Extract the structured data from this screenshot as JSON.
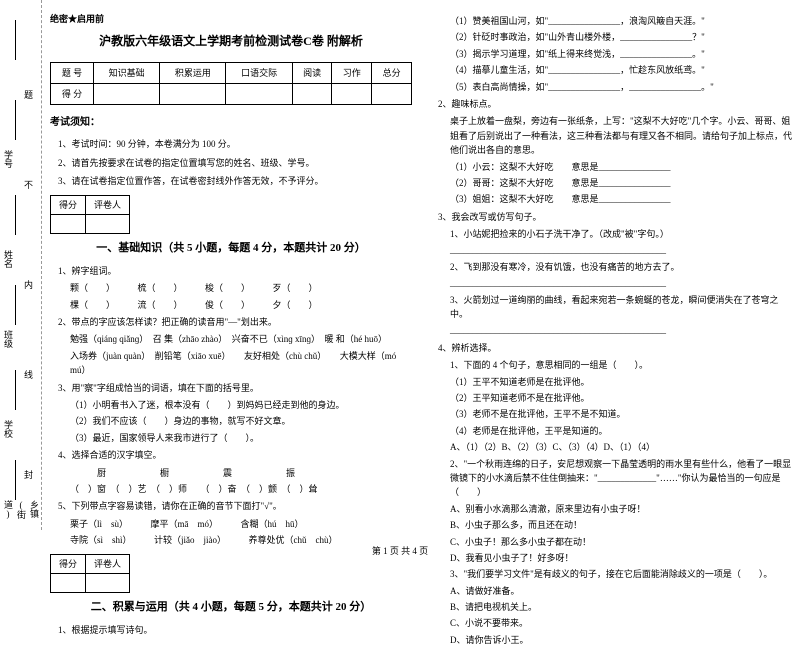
{
  "binding": {
    "labels": [
      "乡镇(街道)",
      "学校",
      "班级",
      "姓名",
      "学号"
    ],
    "marks": [
      "封",
      "线",
      "内",
      "不",
      "题"
    ]
  },
  "secret": "绝密★启用前",
  "title": "沪教版六年级语文上学期考前检测试卷C卷 附解析",
  "scoreTable": {
    "headers": [
      "题 号",
      "知识基础",
      "积累运用",
      "口语交际",
      "阅读",
      "习作",
      "总分"
    ],
    "row2": "得 分"
  },
  "notice": {
    "head": "考试须知：",
    "items": [
      "1、考试时间：90 分钟，本卷满分为 100 分。",
      "2、请首先按要求在试卷的指定位置填写您的姓名、班级、学号。",
      "3、请在试卷指定位置作答，在试卷密封线外作答无效，不予评分。"
    ]
  },
  "marker": {
    "c1": "得分",
    "c2": "评卷人"
  },
  "section1": {
    "head": "一、基础知识（共 5 小题，每题 4 分，本题共计 20 分）",
    "q1": "1、辨字组词。",
    "q1rows": [
      "颗（　　）　　　梳（　　）　　　梭（　　）　　　歹（　　）",
      "棵（　　）　　　流（　　）　　　俊（　　）　　　夕（　　）"
    ],
    "q2": "2、带点的字应该怎样读？把正确的读音用\"—\"划出来。",
    "q2rows": [
      "勉强（qiánɡ qiǎnɡ）　召 集（zhāo zhào）　兴奋不已（xìnɡ xīnɡ）　暖 和（hé huō）",
      "入场券（juàn quàn）　削铅笔（xiāo xuē）　　友好相处（chù chǔ）　　大模大样（mó mú）"
    ],
    "q3": "3、用\"察\"字组成恰当的词语，填在下面的括号里。",
    "q3rows": [
      "（1）小明看书入了迷，根本没有（　　）到妈妈已经走到他的身边。",
      "（2）我们不应该（　　）身边的事物，就写不好文章。",
      "（3）最近，国家领导人来我市进行了（　　）。"
    ],
    "q4": "4、选择合适的汉字填空。",
    "q4rows": [
      "　　　厨　　　　　　橱　　　　　　震　　　　　　振",
      "（　）窗　（　）艺　（　）师　　（　）奋　（　）颤　（　）耸"
    ],
    "q5": "5、下列带点字容易读错，请你在正确的音节下面打\"√\"。",
    "q5rows": [
      "栗子（lì　sù）　　　摩平（mā　mó）　　　含糊（hú　hū）",
      "寺院（sì　shì）　　　计较（jiǎo　jiào）　　　养尊处优（chǔ　chù）"
    ]
  },
  "section2": {
    "head": "二、积累与运用（共 4 小题，每题 5 分，本题共计 20 分）",
    "q1": "1、根据提示填写诗句。"
  },
  "right": {
    "items": [
      "（1）赞美祖国山河，如\"________________，浪淘风簸自天涯。\"",
      "（2）针砭时事政治，如\"山外青山楼外楼，________________？\"",
      "（3）揭示学习道理，如\"纸上得来终觉浅，________________。\"",
      "（4）描摹儿童生活，如\"________________，忙趁东风放纸鸢。\"",
      "（5）表白高尚情操，如\"________________，________________。\""
    ],
    "q2": "2、趣味标点。",
    "q2text": "桌子上放着一盘梨，旁边有一张纸条，上写：\"这梨不大好吃\"几个字。小云、哥哥、姐姐看了后别说出了一种看法，这三种看法都与有理又各不相同。请给句子加上标点，代他们说出各自的意思。",
    "q2rows": [
      "（1）小云：这梨不大好吃　　意思是________________",
      "（2）哥哥：这梨不大好吃　　意思是________________",
      "（3）姐姐：这梨不大好吃　　意思是________________"
    ],
    "q3": "3、我会改写或仿写句子。",
    "q3rows": [
      "1、小站妮把捡来的小石子洗干净了。（改成\"被\"字句。）",
      "________________________________________________",
      "2、飞到那没有寒冷，没有饥饿，也没有痛苦的地方去了。",
      "________________________________________________",
      "3、火箭划过一道绚丽的曲线，看起来宛若一条蜿蜒的苍龙，瞬间便消失在了苍穹之中。",
      "________________________________________________"
    ],
    "q4": "4、辨析选择。",
    "q4rows": [
      "1、下面的 4 个句子，意思相同的一组是（　　）。",
      "（1）王平不知道老师是在批评他。",
      "（2）王平知道老师不是在批评他。",
      "（3）老师不是在批评他，王平不是不知道。",
      "（4）老师是在批评他，王平是知道的。",
      "A、（1）（2）B、（2）（3）C、（3）（4）D、（1）（4）"
    ],
    "q4b": "2、\"一个秋雨连绵的日子，安尼想观察一下晶莹透明的雨水里有些什么，他看了一眼显微镜下的小水滴后禁不住住倒抽来：\"_____________\"……\"你认为最恰当的一句应是（　　）",
    "q4bopts": [
      "A、别看小水滴那么清澈，原来里边有小虫子呀！",
      "B、小虫子那么多，而且还在动！",
      "C、小虫子！那么多小虫子都在动！",
      "D、我看见小虫子了！好多呀！"
    ],
    "q4c": "3、\"我们要学习文件\"是有歧义的句子，接在它后面能消除歧义的一项是（　　）。",
    "q4copts": [
      "A、请做好准备。",
      "B、请把电视机关上。",
      "C、小说不要带来。",
      "D、请你告诉小王。"
    ]
  },
  "footer": "第 1 页 共 4 页"
}
